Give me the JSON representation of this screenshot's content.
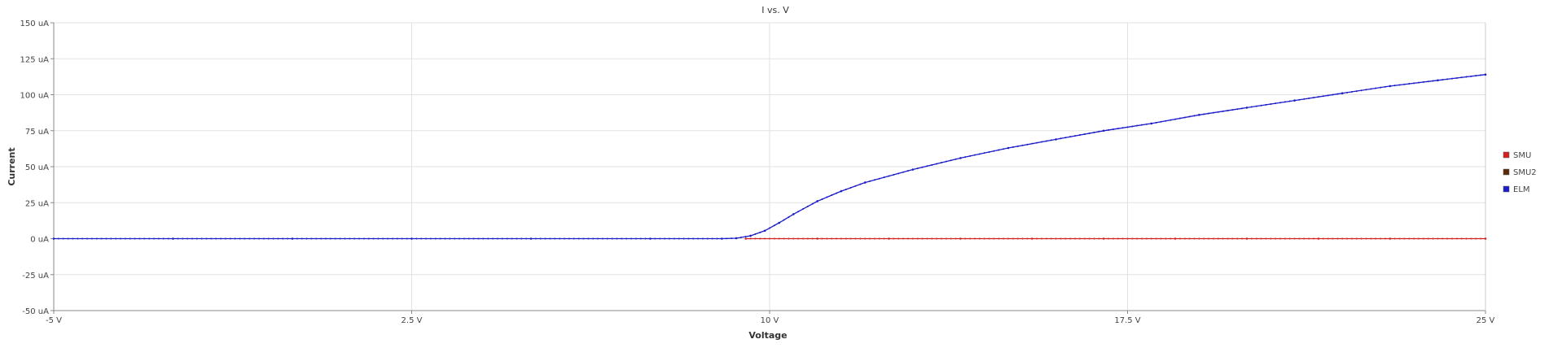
{
  "chart_data": {
    "type": "line",
    "title": "I vs. V",
    "xlabel": "Voltage",
    "ylabel": "Current",
    "xlim": [
      -5,
      25
    ],
    "ylim": [
      -50,
      150
    ],
    "x_ticks": [
      {
        "value": -5,
        "label": "-5 V"
      },
      {
        "value": 2.5,
        "label": "2.5 V"
      },
      {
        "value": 10,
        "label": "10 V"
      },
      {
        "value": 17.5,
        "label": "17.5 V"
      },
      {
        "value": 25,
        "label": "25 V"
      }
    ],
    "y_ticks": [
      {
        "value": 150,
        "label": "150 uA"
      },
      {
        "value": 125,
        "label": "125 uA"
      },
      {
        "value": 100,
        "label": "100 uA"
      },
      {
        "value": 75,
        "label": "75 uA"
      },
      {
        "value": 50,
        "label": "50 uA"
      },
      {
        "value": 25,
        "label": "25 uA"
      },
      {
        "value": 0,
        "label": "0 uA"
      },
      {
        "value": -25,
        "label": "-25 uA"
      },
      {
        "value": -50,
        "label": "-50 uA"
      }
    ],
    "grid": true,
    "legend_position": "right",
    "series": [
      {
        "name": "SMU",
        "color": "#d42020",
        "x": [
          9.5,
          11,
          12.5,
          14,
          15.5,
          17,
          18.5,
          20,
          21.5,
          23,
          25
        ],
        "y": [
          0,
          0,
          0,
          0,
          0,
          0,
          0,
          0,
          0,
          0,
          0
        ]
      },
      {
        "name": "SMU2",
        "color": "#5a2a0a",
        "x": [],
        "y": []
      },
      {
        "name": "ELM",
        "color": "#1c1cc8",
        "x": [
          -5,
          -2.5,
          0,
          2.5,
          5,
          7.5,
          9,
          9.3,
          9.6,
          9.9,
          10.2,
          10.5,
          11,
          11.5,
          12,
          13,
          14,
          15,
          16,
          17,
          18,
          19,
          20,
          21,
          22,
          23,
          24,
          25
        ],
        "y": [
          0,
          0,
          0,
          0,
          0,
          0,
          0,
          0.3,
          2,
          5.5,
          11,
          17,
          26,
          33,
          39,
          48,
          56,
          63,
          69,
          75,
          80,
          86,
          91,
          96,
          101,
          106,
          110,
          114
        ]
      }
    ]
  }
}
